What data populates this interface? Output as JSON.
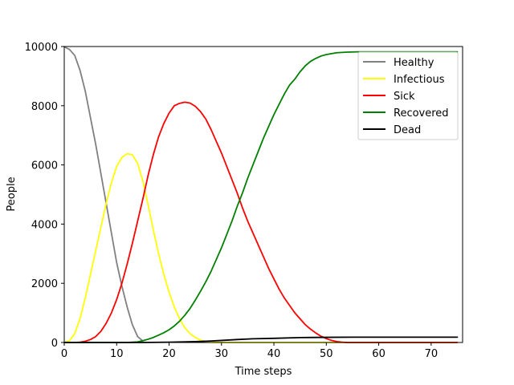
{
  "chart_data": {
    "type": "line",
    "title": "",
    "xlabel": "Time steps",
    "ylabel": "People",
    "xlim": [
      0,
      76
    ],
    "ylim": [
      0,
      10000
    ],
    "xticks": [
      0,
      10,
      20,
      30,
      40,
      50,
      60,
      70
    ],
    "yticks": [
      0,
      2000,
      4000,
      6000,
      8000,
      10000
    ],
    "grid": false,
    "legend_position": "top-right",
    "series": [
      {
        "name": "Healthy",
        "color": "#808080",
        "points": [
          [
            0,
            9990
          ],
          [
            1,
            9900
          ],
          [
            2,
            9700
          ],
          [
            3,
            9200
          ],
          [
            4,
            8500
          ],
          [
            5,
            7600
          ],
          [
            6,
            6700
          ],
          [
            7,
            5700
          ],
          [
            8,
            4700
          ],
          [
            9,
            3700
          ],
          [
            10,
            2700
          ],
          [
            11,
            1900
          ],
          [
            12,
            1200
          ],
          [
            13,
            600
          ],
          [
            14,
            200
          ],
          [
            15,
            50
          ]
        ]
      },
      {
        "name": "Infectious",
        "color": "#ffff00",
        "points": [
          [
            0,
            0
          ],
          [
            1,
            60
          ],
          [
            2,
            300
          ],
          [
            3,
            800
          ],
          [
            4,
            1500
          ],
          [
            5,
            2300
          ],
          [
            6,
            3100
          ],
          [
            7,
            3900
          ],
          [
            8,
            4700
          ],
          [
            9,
            5400
          ],
          [
            10,
            5950
          ],
          [
            11,
            6250
          ],
          [
            12,
            6380
          ],
          [
            13,
            6340
          ],
          [
            14,
            6050
          ],
          [
            15,
            5450
          ],
          [
            16,
            4650
          ],
          [
            17,
            3800
          ],
          [
            18,
            3000
          ],
          [
            19,
            2300
          ],
          [
            20,
            1700
          ],
          [
            21,
            1200
          ],
          [
            22,
            800
          ],
          [
            23,
            500
          ],
          [
            24,
            300
          ],
          [
            25,
            170
          ],
          [
            26,
            80
          ],
          [
            27,
            30
          ],
          [
            28,
            10
          ],
          [
            29,
            0
          ],
          [
            75,
            0
          ]
        ]
      },
      {
        "name": "Sick",
        "color": "#ff0000",
        "points": [
          [
            0,
            0
          ],
          [
            2,
            0
          ],
          [
            3,
            10
          ],
          [
            4,
            40
          ],
          [
            5,
            100
          ],
          [
            6,
            200
          ],
          [
            7,
            380
          ],
          [
            8,
            650
          ],
          [
            9,
            1000
          ],
          [
            10,
            1450
          ],
          [
            11,
            2000
          ],
          [
            12,
            2650
          ],
          [
            13,
            3350
          ],
          [
            14,
            4100
          ],
          [
            15,
            4850
          ],
          [
            16,
            5650
          ],
          [
            17,
            6350
          ],
          [
            18,
            6950
          ],
          [
            19,
            7400
          ],
          [
            20,
            7750
          ],
          [
            21,
            8000
          ],
          [
            22,
            8080
          ],
          [
            23,
            8120
          ],
          [
            24,
            8090
          ],
          [
            25,
            7980
          ],
          [
            26,
            7800
          ],
          [
            27,
            7550
          ],
          [
            28,
            7200
          ],
          [
            29,
            6800
          ],
          [
            30,
            6400
          ],
          [
            31,
            5950
          ],
          [
            32,
            5500
          ],
          [
            33,
            5050
          ],
          [
            34,
            4550
          ],
          [
            35,
            4100
          ],
          [
            36,
            3700
          ],
          [
            37,
            3300
          ],
          [
            38,
            2900
          ],
          [
            39,
            2500
          ],
          [
            40,
            2150
          ],
          [
            41,
            1800
          ],
          [
            42,
            1500
          ],
          [
            43,
            1250
          ],
          [
            44,
            1000
          ],
          [
            45,
            800
          ],
          [
            46,
            600
          ],
          [
            47,
            450
          ],
          [
            48,
            320
          ],
          [
            49,
            210
          ],
          [
            50,
            130
          ],
          [
            51,
            70
          ],
          [
            52,
            30
          ],
          [
            53,
            10
          ],
          [
            54,
            0
          ],
          [
            75,
            0
          ]
        ]
      },
      {
        "name": "Recovered",
        "color": "#008000",
        "points": [
          [
            0,
            0
          ],
          [
            12,
            0
          ],
          [
            14,
            20
          ],
          [
            15,
            60
          ],
          [
            16,
            110
          ],
          [
            17,
            170
          ],
          [
            18,
            250
          ],
          [
            19,
            330
          ],
          [
            20,
            430
          ],
          [
            21,
            560
          ],
          [
            22,
            720
          ],
          [
            23,
            920
          ],
          [
            24,
            1150
          ],
          [
            25,
            1430
          ],
          [
            26,
            1730
          ],
          [
            27,
            2050
          ],
          [
            28,
            2400
          ],
          [
            29,
            2800
          ],
          [
            30,
            3200
          ],
          [
            31,
            3650
          ],
          [
            32,
            4100
          ],
          [
            33,
            4600
          ],
          [
            34,
            5050
          ],
          [
            35,
            5550
          ],
          [
            36,
            6000
          ],
          [
            37,
            6450
          ],
          [
            38,
            6900
          ],
          [
            39,
            7300
          ],
          [
            40,
            7700
          ],
          [
            41,
            8050
          ],
          [
            42,
            8400
          ],
          [
            43,
            8700
          ],
          [
            44,
            8900
          ],
          [
            45,
            9150
          ],
          [
            46,
            9350
          ],
          [
            47,
            9500
          ],
          [
            48,
            9600
          ],
          [
            49,
            9680
          ],
          [
            50,
            9730
          ],
          [
            51,
            9760
          ],
          [
            52,
            9790
          ],
          [
            54,
            9810
          ],
          [
            56,
            9820
          ],
          [
            75,
            9820
          ]
        ]
      },
      {
        "name": "Dead",
        "color": "#000000",
        "points": [
          [
            0,
            0
          ],
          [
            15,
            0
          ],
          [
            20,
            10
          ],
          [
            25,
            30
          ],
          [
            28,
            50
          ],
          [
            30,
            70
          ],
          [
            33,
            100
          ],
          [
            36,
            125
          ],
          [
            40,
            140
          ],
          [
            45,
            165
          ],
          [
            50,
            175
          ],
          [
            55,
            180
          ],
          [
            75,
            180
          ]
        ]
      }
    ]
  }
}
